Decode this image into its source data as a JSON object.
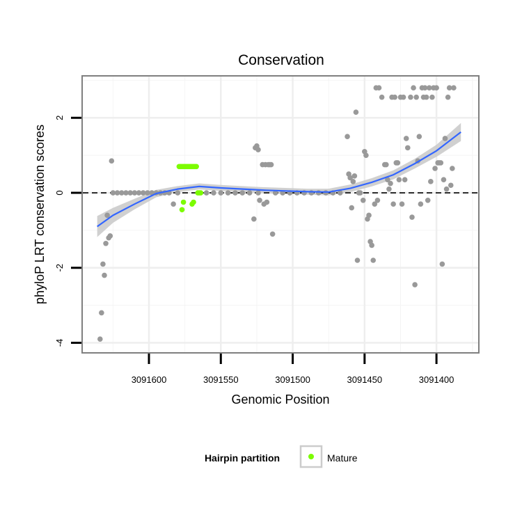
{
  "chart_data": {
    "type": "scatter",
    "title": "Conservation",
    "xlabel": "Genomic Position",
    "ylabel": "phyloP LRT conservation scores",
    "x_reversed": true,
    "xlim": [
      3091646,
      3091371
    ],
    "ylim": [
      -4.25,
      3.1
    ],
    "x_ticks": [
      3091600,
      3091550,
      3091500,
      3091450,
      3091400
    ],
    "y_ticks": [
      -4,
      -2,
      0,
      2
    ],
    "grid": true,
    "reference_line": {
      "y": 0,
      "style": "dashed"
    },
    "legend": {
      "title": "Hairpin partition",
      "position": "bottom",
      "entries": [
        {
          "label": "Mature",
          "color": "#7CFC00"
        }
      ]
    },
    "series": [
      {
        "color": "#999999",
        "points": [
          [
            3091634,
            -3.9
          ],
          [
            3091633,
            -3.2
          ],
          [
            3091632,
            -1.9
          ],
          [
            3091631,
            -2.2
          ],
          [
            3091630,
            -1.35
          ],
          [
            3091629,
            -0.6
          ],
          [
            3091628,
            -1.2
          ],
          [
            3091627,
            -1.15
          ],
          [
            3091626,
            0.85
          ],
          [
            3091625,
            0
          ],
          [
            3091622,
            0
          ],
          [
            3091619,
            0
          ],
          [
            3091616,
            0
          ],
          [
            3091613,
            0
          ],
          [
            3091610,
            0
          ],
          [
            3091607,
            0
          ],
          [
            3091604,
            0
          ],
          [
            3091601,
            0
          ],
          [
            3091598,
            0
          ],
          [
            3091595,
            0
          ],
          [
            3091592,
            0
          ],
          [
            3091589,
            0
          ],
          [
            3091586,
            0
          ],
          [
            3091583,
            -0.3
          ],
          [
            3091580,
            0
          ],
          [
            3091560,
            0
          ],
          [
            3091555,
            0
          ],
          [
            3091550,
            0
          ],
          [
            3091545,
            0
          ],
          [
            3091540,
            0
          ],
          [
            3091535,
            0
          ],
          [
            3091530,
            0
          ],
          [
            3091527,
            -0.7
          ],
          [
            3091526,
            1.2
          ],
          [
            3091525,
            1.25
          ],
          [
            3091524,
            1.15
          ],
          [
            3091524,
            0
          ],
          [
            3091523,
            -0.2
          ],
          [
            3091521,
            0.75
          ],
          [
            3091520,
            -0.3
          ],
          [
            3091519,
            0.75
          ],
          [
            3091518,
            -0.25
          ],
          [
            3091517,
            0.75
          ],
          [
            3091516,
            0.75
          ],
          [
            3091515,
            0.75
          ],
          [
            3091514,
            -1.1
          ],
          [
            3091512,
            0
          ],
          [
            3091507,
            0
          ],
          [
            3091502,
            0
          ],
          [
            3091497,
            0
          ],
          [
            3091492,
            0
          ],
          [
            3091487,
            0
          ],
          [
            3091482,
            0
          ],
          [
            3091477,
            0
          ],
          [
            3091472,
            0
          ],
          [
            3091467,
            0
          ],
          [
            3091462,
            1.5
          ],
          [
            3091461,
            0.5
          ],
          [
            3091460,
            0.4
          ],
          [
            3091459,
            -0.4
          ],
          [
            3091458,
            0.3
          ],
          [
            3091457,
            0.45
          ],
          [
            3091456,
            2.15
          ],
          [
            3091455,
            -1.8
          ],
          [
            3091454,
            0
          ],
          [
            3091453,
            0
          ],
          [
            3091451,
            -0.2
          ],
          [
            3091450,
            1.1
          ],
          [
            3091449,
            1.0
          ],
          [
            3091448,
            -0.7
          ],
          [
            3091447,
            -0.6
          ],
          [
            3091446,
            -1.3
          ],
          [
            3091445,
            -1.4
          ],
          [
            3091444,
            -1.8
          ],
          [
            3091443,
            -0.3
          ],
          [
            3091442,
            2.8
          ],
          [
            3091441,
            -0.2
          ],
          [
            3091440,
            2.8
          ],
          [
            3091438,
            2.55
          ],
          [
            3091436,
            0.75
          ],
          [
            3091435,
            0.75
          ],
          [
            3091434,
            0.35
          ],
          [
            3091433,
            0.1
          ],
          [
            3091432,
            0.25
          ],
          [
            3091431,
            2.55
          ],
          [
            3091430,
            -0.3
          ],
          [
            3091429,
            2.55
          ],
          [
            3091428,
            0.8
          ],
          [
            3091427,
            0.8
          ],
          [
            3091426,
            0.35
          ],
          [
            3091425,
            2.55
          ],
          [
            3091424,
            -0.3
          ],
          [
            3091423,
            2.55
          ],
          [
            3091422,
            0.35
          ],
          [
            3091421,
            1.45
          ],
          [
            3091420,
            1.2
          ],
          [
            3091418,
            2.55
          ],
          [
            3091417,
            -0.65
          ],
          [
            3091416,
            2.8
          ],
          [
            3091415,
            -2.45
          ],
          [
            3091414,
            2.55
          ],
          [
            3091413,
            0.85
          ],
          [
            3091412,
            1.5
          ],
          [
            3091411,
            -0.3
          ],
          [
            3091410,
            2.8
          ],
          [
            3091409,
            2.55
          ],
          [
            3091408,
            2.8
          ],
          [
            3091407,
            2.55
          ],
          [
            3091406,
            -0.2
          ],
          [
            3091405,
            2.8
          ],
          [
            3091404,
            0.3
          ],
          [
            3091403,
            2.55
          ],
          [
            3091402,
            2.8
          ],
          [
            3091401,
            0.65
          ],
          [
            3091400,
            2.8
          ],
          [
            3091399,
            0.8
          ],
          [
            3091398,
            0.8
          ],
          [
            3091397,
            0.8
          ],
          [
            3091396,
            -1.9
          ],
          [
            3091395,
            0.35
          ],
          [
            3091394,
            1.45
          ],
          [
            3091393,
            0.1
          ],
          [
            3091392,
            2.55
          ],
          [
            3091391,
            2.8
          ],
          [
            3091390,
            0.2
          ],
          [
            3091389,
            0.65
          ],
          [
            3091388,
            2.8
          ]
        ]
      },
      {
        "name": "Mature",
        "color": "#7CFC00",
        "points": [
          [
            3091579,
            0.7
          ],
          [
            3091578,
            0.7
          ],
          [
            3091577,
            0.7
          ],
          [
            3091576,
            0.7
          ],
          [
            3091575,
            0.7
          ],
          [
            3091574,
            0.7
          ],
          [
            3091573,
            0.7
          ],
          [
            3091572,
            0.7
          ],
          [
            3091571,
            0.7
          ],
          [
            3091570,
            0.7
          ],
          [
            3091569,
            0.7
          ],
          [
            3091568,
            0.7
          ],
          [
            3091567,
            0.7
          ],
          [
            3091577,
            -0.45
          ],
          [
            3091576,
            -0.25
          ],
          [
            3091570,
            -0.3
          ],
          [
            3091569,
            -0.25
          ],
          [
            3091566,
            0
          ],
          [
            3091565,
            0
          ],
          [
            3091564,
            0
          ]
        ]
      }
    ],
    "smooth": {
      "color": "#3366FF",
      "band_color": "#C8C8C8",
      "points": [
        [
          3091636,
          -0.9,
          0.28
        ],
        [
          3091625,
          -0.6,
          0.2
        ],
        [
          3091610,
          -0.3,
          0.14
        ],
        [
          3091595,
          -0.02,
          0.1
        ],
        [
          3091580,
          0.1,
          0.08
        ],
        [
          3091565,
          0.17,
          0.08
        ],
        [
          3091550,
          0.13,
          0.08
        ],
        [
          3091535,
          0.1,
          0.08
        ],
        [
          3091520,
          0.07,
          0.08
        ],
        [
          3091505,
          0.05,
          0.08
        ],
        [
          3091490,
          0.03,
          0.08
        ],
        [
          3091475,
          0.02,
          0.09
        ],
        [
          3091460,
          0.12,
          0.1
        ],
        [
          3091445,
          0.28,
          0.11
        ],
        [
          3091430,
          0.48,
          0.12
        ],
        [
          3091415,
          0.78,
          0.13
        ],
        [
          3091400,
          1.12,
          0.16
        ],
        [
          3091383,
          1.62,
          0.24
        ]
      ]
    }
  }
}
